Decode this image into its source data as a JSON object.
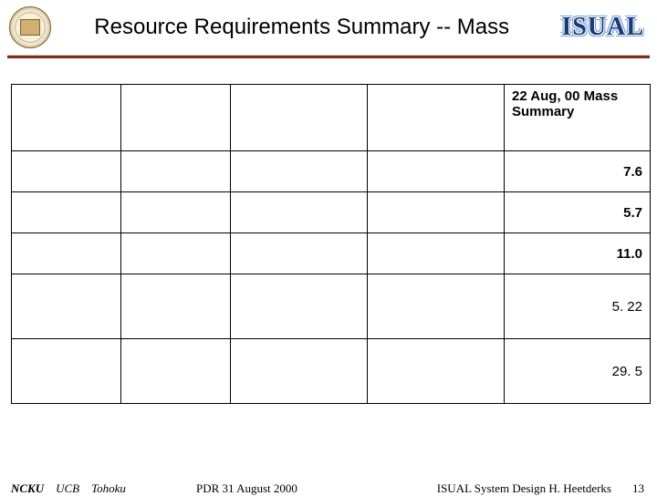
{
  "header": {
    "title": "Resource Requirements Summary -- Mass",
    "logo_text": "ISUAL"
  },
  "table": {
    "header_cell": "22 Aug, 00 Mass Summary",
    "rows": [
      {
        "c5": "7.6"
      },
      {
        "c5": "5.7"
      },
      {
        "c5": "11.0"
      },
      {
        "c5": "5. 22"
      },
      {
        "c5": "29. 5"
      }
    ]
  },
  "footer": {
    "affil1": "NCKU",
    "affil2": "UCB",
    "affil3": "Tohoku",
    "center": "PDR 31 August 2000",
    "right": "ISUAL System Design  H. Heetderks",
    "page": "13"
  }
}
